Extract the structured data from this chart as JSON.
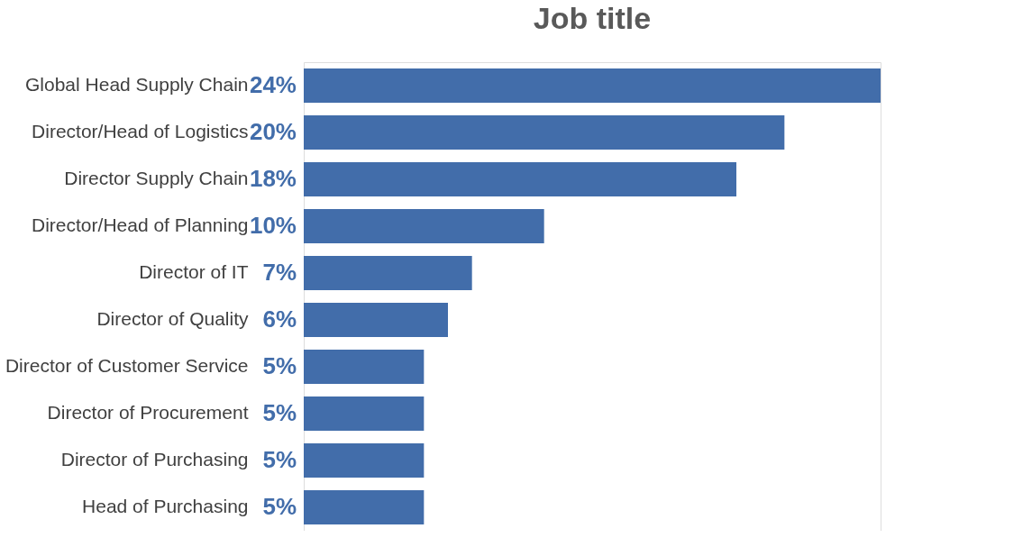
{
  "chart_data": {
    "type": "bar",
    "orientation": "horizontal",
    "title": "Job title",
    "categories": [
      "Global Head Supply Chain",
      "Director/Head of Logistics",
      "Director Supply Chain",
      "Director/Head of Planning",
      "Director of IT",
      "Director of Quality",
      "Director of Customer Service",
      "Director of Procurement",
      "Director of Purchasing",
      "Head of Purchasing"
    ],
    "values": [
      24,
      20,
      18,
      10,
      7,
      6,
      5,
      5,
      5,
      5
    ],
    "value_labels": [
      "24%",
      "20%",
      "18%",
      "10%",
      "7%",
      "6%",
      "5%",
      "5%",
      "5%",
      "5%"
    ],
    "color": "#426daa",
    "grid": false
  }
}
